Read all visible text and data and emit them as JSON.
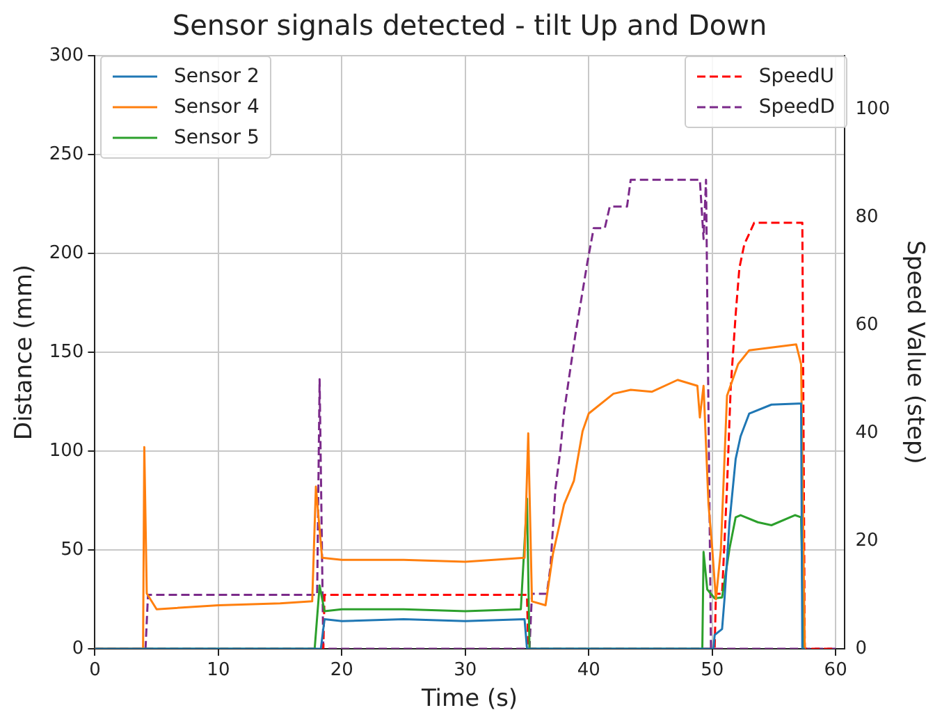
{
  "chart_data": {
    "type": "line",
    "title": "Sensor signals detected - tilt Up and Down",
    "xlabel": "Time (s)",
    "ylabel": "Distance (mm)",
    "y2label": "Speed Value (step)",
    "xlim": [
      0,
      60.7
    ],
    "xticks": [
      0,
      10,
      20,
      30,
      40,
      50,
      60
    ],
    "ylim": [
      0,
      300
    ],
    "yticks": [
      0,
      50,
      100,
      150,
      200,
      250,
      300
    ],
    "y2lim": [
      0,
      110
    ],
    "y2ticks": [
      0,
      20,
      40,
      60,
      80,
      100
    ],
    "grid": true,
    "legend": "top left",
    "series": [
      {
        "name": "Sensor 2",
        "color": "#1f77b4",
        "x": [
          0,
          18.3,
          18.6,
          20,
          25,
          30,
          34.8,
          35.0,
          50.1,
          50.2,
          50.8,
          51.0,
          51.4,
          51.9,
          52.3,
          53.0,
          54.8,
          57.0,
          57.2,
          57.3,
          57.5
        ],
        "values": [
          0,
          0,
          15,
          14,
          15,
          14,
          15,
          0,
          0,
          7,
          10,
          25.5,
          64,
          96,
          107.5,
          119,
          123.5,
          124,
          124,
          0,
          0
        ]
      },
      {
        "name": "Sensor 4",
        "color": "#ff7f0e",
        "x": [
          0,
          3.9,
          4.0,
          4.2,
          5,
          10,
          15,
          17.6,
          17.9,
          18.4,
          20,
          25,
          30,
          34.8,
          35.1,
          35.4,
          36.5,
          37.1,
          38.0,
          38.8,
          39.5,
          40.0,
          42.0,
          43.4,
          45.1,
          47.2,
          48.8,
          49.0,
          49.3,
          49.7,
          50.0,
          50.3,
          50.7,
          51.2,
          52.1,
          53.0,
          56.8,
          57.2,
          57.5
        ],
        "values": [
          0,
          0,
          102,
          28,
          20,
          22,
          23,
          24,
          82,
          46,
          45,
          45,
          44,
          46,
          109,
          24,
          22,
          48,
          73,
          85,
          110,
          119,
          129,
          131,
          130,
          136,
          133,
          117,
          133,
          73,
          51,
          25,
          50,
          128,
          144,
          151,
          154,
          144,
          0
        ]
      },
      {
        "name": "Sensor 5",
        "color": "#2ca02c",
        "x": [
          0,
          17.8,
          18.2,
          18.6,
          20,
          25,
          30,
          34.5,
          35.0,
          35.2,
          49.2,
          49.3,
          49.6,
          50.2,
          50.8,
          51.4,
          51.9,
          52.3,
          53.7,
          54.8,
          56.7,
          57.2,
          57.4
        ],
        "values": [
          0,
          0,
          32,
          19,
          20,
          20,
          19,
          20,
          76,
          0,
          0,
          49,
          30,
          25.5,
          26,
          50.6,
          66.5,
          67.6,
          64,
          62.5,
          67.6,
          66.5,
          0
        ]
      },
      {
        "name": "SpeedU",
        "color": "#ff0000",
        "axis": "y2",
        "line_style": "dashed",
        "x": [
          0,
          18.5,
          18.6,
          35.0,
          35.1,
          50.2,
          50.3,
          50.8,
          51.2,
          51.5,
          51.9,
          52.2,
          52.6,
          53.4,
          57.3,
          57.5,
          60
        ],
        "values": [
          0,
          0,
          10,
          10,
          0,
          0,
          10.2,
          10.2,
          30,
          48.5,
          62,
          70.6,
          75,
          79,
          79,
          0,
          0
        ]
      },
      {
        "name": "SpeedD",
        "color": "#7b2a8a",
        "axis": "y2",
        "line_style": "dashed",
        "x": [
          0,
          4.1,
          4.3,
          18.0,
          18.2,
          18.5,
          35.2,
          35.4,
          36.6,
          36.9,
          37.3,
          37.7,
          38.0,
          38.4,
          38.9,
          39.9,
          40.4,
          41.3,
          41.7,
          43.1,
          43.4,
          49.0,
          49.3,
          49.5,
          49.9,
          60
        ],
        "values": [
          0,
          0,
          10,
          10,
          50,
          0,
          0,
          10.2,
          10.2,
          15.2,
          29.7,
          36.8,
          43.9,
          50.2,
          58,
          71.8,
          78,
          78,
          82,
          82,
          87,
          87,
          76,
          87,
          0,
          0
        ]
      }
    ]
  }
}
